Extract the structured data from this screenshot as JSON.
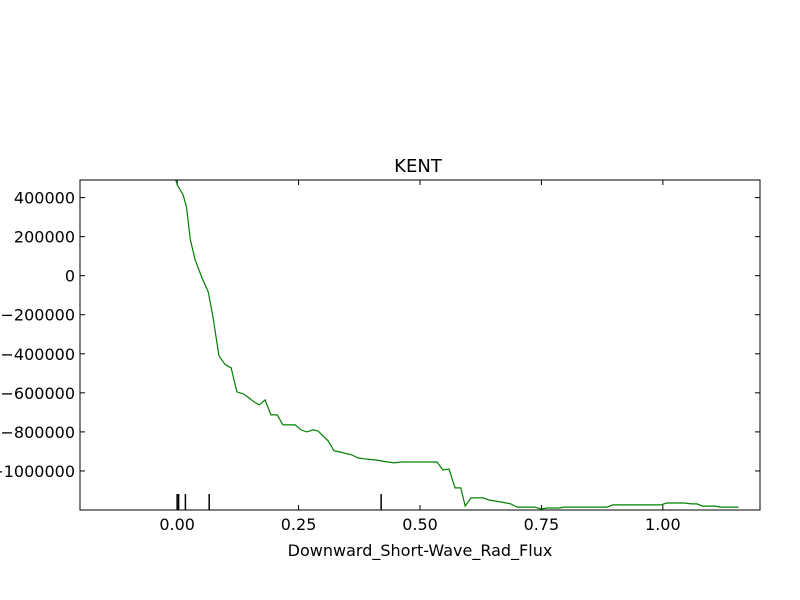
{
  "chart_data": {
    "type": "line",
    "title": "KENT",
    "x_label": "Downward_Short-Wave_Rad_Flux",
    "xlim": [
      -0.2,
      1.2
    ],
    "ylim": [
      -1200000,
      490000
    ],
    "xticks": [
      {
        "value": 0,
        "label": "0.00"
      },
      {
        "value": 0.25,
        "label": "0.25"
      },
      {
        "value": 0.5,
        "label": "0.50"
      },
      {
        "value": 0.75,
        "label": "0.75"
      },
      {
        "value": 1,
        "label": "1.00"
      }
    ],
    "yticks": [
      400000,
      200000,
      0,
      {
        "value": -200000,
        "label": "−200000"
      },
      {
        "value": -400000,
        "label": "−400000"
      },
      {
        "value": -600000,
        "label": "−600000"
      },
      {
        "value": -800000,
        "label": "−800000"
      },
      {
        "value": -1000000,
        "label": "−1000000"
      }
    ],
    "rug": [
      0,
      0.003,
      0.017,
      0.066,
      0.42
    ],
    "series": [
      {
        "color": "#008000",
        "x": [
          -0.004,
          0,
          0.006,
          0.012,
          0.019,
          0.027,
          0.037,
          0.051,
          0.064,
          0.074,
          0.086,
          0.099,
          0.111,
          0.123,
          0.136,
          0.148,
          0.158,
          0.169,
          0.181,
          0.193,
          0.206,
          0.218,
          0.243,
          0.255,
          0.267,
          0.28,
          0.29,
          0.3,
          0.311,
          0.323,
          0.335,
          0.36,
          0.372,
          0.385,
          0.409,
          0.434,
          0.447,
          0.459,
          0.484,
          0.535,
          0.547,
          0.56,
          0.572,
          0.584,
          0.593,
          0.605,
          0.63,
          0.642,
          0.667,
          0.687,
          0.7,
          0.737,
          0.749,
          0.761,
          0.786,
          0.798,
          0.885,
          0.897,
          0.996,
          1.008,
          1.045,
          1.058,
          1.07,
          1.082,
          1.107,
          1.119,
          1.156
        ],
        "values": [
          500000,
          467000,
          440000,
          415000,
          354000,
          185000,
          82000,
          -10000,
          -82000,
          -215000,
          -410000,
          -456000,
          -472000,
          -595000,
          -605000,
          -626000,
          -646000,
          -662000,
          -636000,
          -713000,
          -713000,
          -764000,
          -764000,
          -790000,
          -800000,
          -790000,
          -795000,
          -820000,
          -846000,
          -897000,
          -903000,
          -918000,
          -933000,
          -938000,
          -944000,
          -954000,
          -959000,
          -954000,
          -954000,
          -954000,
          -995000,
          -990000,
          -1087000,
          -1087000,
          -1180000,
          -1138000,
          -1138000,
          -1149000,
          -1159000,
          -1169000,
          -1185000,
          -1185000,
          -1195000,
          -1190000,
          -1190000,
          -1185000,
          -1185000,
          -1174000,
          -1174000,
          -1164000,
          -1164000,
          -1169000,
          -1169000,
          -1180000,
          -1180000,
          -1185000,
          -1185000
        ]
      }
    ]
  }
}
